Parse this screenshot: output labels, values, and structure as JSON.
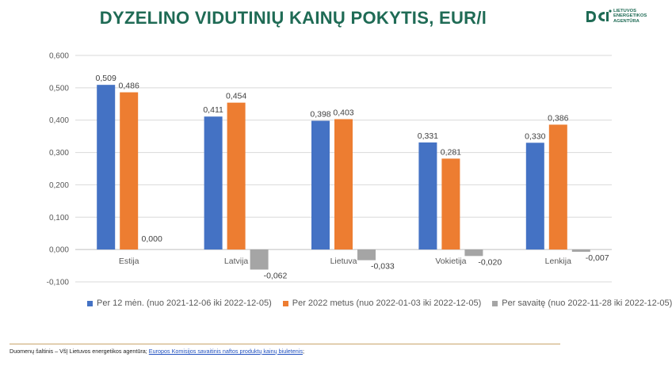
{
  "title": "DYZELINO VIDUTINIŲ KAINŲ POKYTIS, EUR/l",
  "logo": {
    "lines": [
      "LIETUVOS",
      "ENERGETIKOS",
      "AGENTŪRA"
    ],
    "color": "#1f6b55"
  },
  "chart_data": {
    "type": "bar",
    "title": "DYZELINO VIDUTINIŲ KAINŲ POKYTIS, EUR/l",
    "categories": [
      "Estija",
      "Latvija",
      "Lietuva",
      "Vokietija",
      "Lenkija"
    ],
    "series": [
      {
        "name": "Per 12 mėn. (nuo 2021-12-06 iki 2022-12-05)",
        "color": "#4472c4",
        "values": [
          0.509,
          0.411,
          0.398,
          0.331,
          0.33
        ]
      },
      {
        "name": "Per 2022 metus (nuo 2022-01-03 iki 2022-12-05)",
        "color": "#ed7d31",
        "values": [
          0.486,
          0.454,
          0.403,
          0.281,
          0.386
        ]
      },
      {
        "name": "Per savaitę (nuo 2022-11-28 iki 2022-12-05)",
        "color": "#a5a5a5",
        "values": [
          0.0,
          -0.062,
          -0.033,
          -0.02,
          -0.007
        ]
      }
    ],
    "data_labels": [
      [
        "0,509",
        "0,411",
        "0,398",
        "0,331",
        "0,330"
      ],
      [
        "0,486",
        "0,454",
        "0,403",
        "0,281",
        "0,386"
      ],
      [
        "0,000",
        "-0,062",
        "-0,033",
        "-0,020",
        "-0,007"
      ]
    ],
    "ylim": [
      -0.1,
      0.6
    ],
    "yticks": [
      0.6,
      0.5,
      0.4,
      0.3,
      0.2,
      0.1,
      0.0,
      -0.1
    ],
    "ytick_labels": [
      "0,600",
      "0,500",
      "0,400",
      "0,300",
      "0,200",
      "0,100",
      "0,000",
      "-0,100"
    ],
    "grid": true,
    "legend_position": "bottom"
  },
  "source": {
    "prefix": "Duomenų šaltinis – VšĮ Lietuvos energetikos agentūra; ",
    "link_text": "Europos Komisijos savaitinis naftos produktų kainų biuletenis",
    "suffix": ";"
  }
}
